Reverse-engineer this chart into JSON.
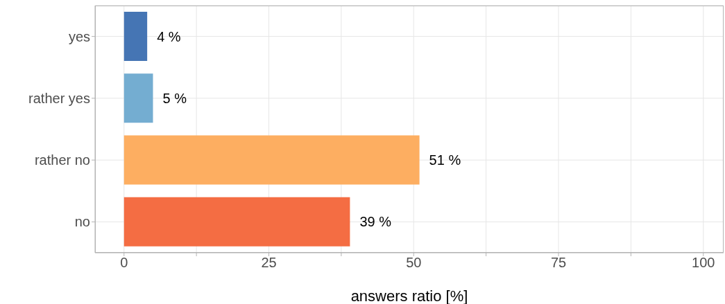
{
  "chart_data": {
    "type": "bar",
    "orientation": "horizontal",
    "xlabel": "answers ratio [%]",
    "categories": [
      "yes",
      "rather yes",
      "rather no",
      "no"
    ],
    "values": [
      4,
      5,
      51,
      39
    ],
    "colors": [
      "#4575b4",
      "#74add1",
      "#fdae61",
      "#f46d43"
    ],
    "value_labels": [
      "4 %",
      "5 %",
      "51 %",
      "39 %"
    ],
    "xlim": [
      -5,
      103.5
    ],
    "xticks": [
      0,
      {
        "value": 12.5,
        "label": null
      },
      25,
      {
        "value": 37.5,
        "label": null
      },
      50,
      {
        "value": 62.5,
        "label": null
      },
      75,
      {
        "value": 87.5,
        "label": null
      },
      100
    ],
    "grid": true
  }
}
